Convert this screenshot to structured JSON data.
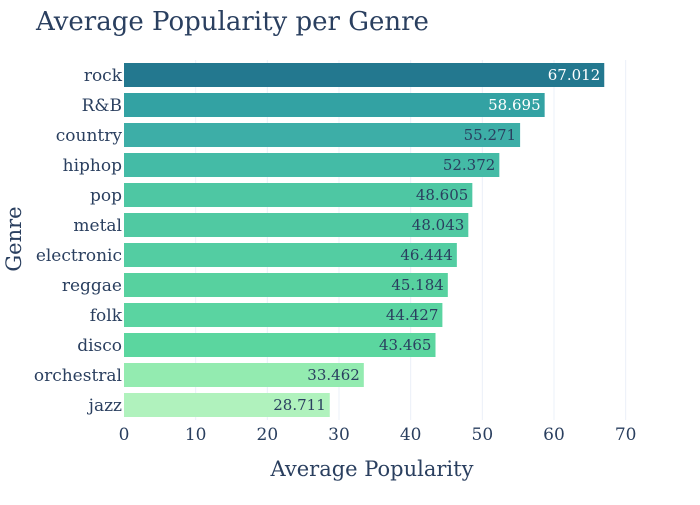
{
  "chart_data": {
    "type": "bar",
    "orientation": "horizontal",
    "title": "Average Popularity per Genre",
    "xlabel": "Average Popularity",
    "ylabel": "Genre",
    "xlim": [
      0,
      72
    ],
    "xticks": [
      0,
      10,
      20,
      30,
      40,
      50,
      60,
      70
    ],
    "grid": true,
    "categories": [
      "rock",
      "R&B",
      "country",
      "hiphop",
      "pop",
      "metal",
      "electronic",
      "reggae",
      "folk",
      "disco",
      "orchestral",
      "jazz"
    ],
    "values": [
      67.012,
      58.695,
      55.271,
      52.372,
      48.605,
      48.043,
      46.444,
      45.184,
      44.427,
      43.465,
      33.462,
      28.711
    ],
    "value_labels": [
      "67.012",
      "58.695",
      "55.271",
      "52.372",
      "48.605",
      "48.043",
      "46.444",
      "45.184",
      "44.427",
      "43.465",
      "33.462",
      "28.711"
    ],
    "colors": [
      "#23788f",
      "#33a2a3",
      "#3daea7",
      "#44bba6",
      "#4ec7a3",
      "#50c9a2",
      "#53cda2",
      "#57d19f",
      "#5ad4a1",
      "#5bd69f",
      "#93ebb0",
      "#b0f2bd"
    ],
    "label_colors": [
      "#ffffff",
      "#ffffff",
      "#2a3f5f",
      "#2a3f5f",
      "#2a3f5f",
      "#2a3f5f",
      "#2a3f5f",
      "#2a3f5f",
      "#2a3f5f",
      "#2a3f5f",
      "#2a3f5f",
      "#2a3f5f"
    ]
  }
}
